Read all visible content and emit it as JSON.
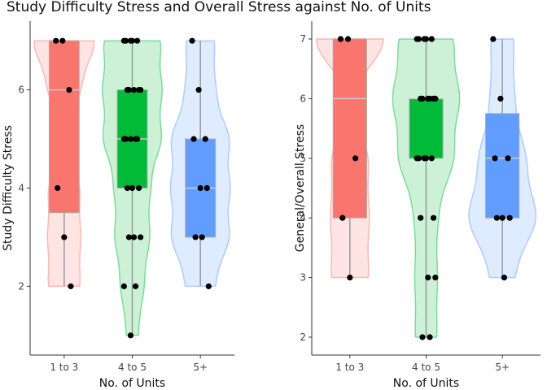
{
  "title": "Study Difficulty Stress and Overall Stress against No. of Units",
  "colors": {
    "group1": "#F8766D",
    "group2": "#00BA38",
    "group3": "#619CFF"
  },
  "chart_data": [
    {
      "type": "violin+box",
      "xlabel": "No. of Units",
      "ylabel": "Study Difficulty Stress",
      "categories": [
        "1 to 3",
        "4 to 5",
        "5+"
      ],
      "ylim": [
        0.6,
        7.4
      ],
      "yticks": [
        2,
        4,
        6
      ],
      "grid": false,
      "box": [
        {
          "category": "1 to 3",
          "q1": 3.5,
          "median": 6,
          "q3": 7
        },
        {
          "category": "4 to 5",
          "q1": 4,
          "median": 5,
          "q3": 6
        },
        {
          "category": "5+",
          "q1": 3,
          "median": 4,
          "q3": 5
        }
      ],
      "whiskers": [
        {
          "category": "1 to 3",
          "low": 2,
          "high": 7
        },
        {
          "category": "4 to 5",
          "low": 1,
          "high": 7
        },
        {
          "category": "5+",
          "low": 2,
          "high": 7
        }
      ],
      "points": [
        {
          "category": "1 to 3",
          "values": [
            7,
            7,
            6,
            4,
            3,
            2
          ]
        },
        {
          "category": "4 to 5",
          "values": [
            7,
            7,
            7,
            7,
            7,
            6,
            6,
            6,
            6,
            6,
            5,
            5,
            5,
            5,
            5,
            4,
            4,
            4,
            3,
            3,
            3,
            2,
            2,
            1
          ]
        },
        {
          "category": "5+",
          "values": [
            7,
            6,
            5,
            5,
            4,
            4,
            3,
            3,
            2
          ]
        }
      ]
    },
    {
      "type": "violin+box",
      "xlabel": "No. of Units",
      "ylabel": "General/Overall Stress",
      "categories": [
        "1 to 3",
        "4 to 5",
        "5+"
      ],
      "ylim": [
        1.7,
        7.3
      ],
      "yticks": [
        2,
        3,
        4,
        5,
        6,
        7
      ],
      "grid": false,
      "box": [
        {
          "category": "1 to 3",
          "q1": 4,
          "median": 6,
          "q3": 7
        },
        {
          "category": "4 to 5",
          "q1": 5,
          "median": 6,
          "q3": 6
        },
        {
          "category": "5+",
          "q1": 4,
          "median": 5,
          "q3": 5.75
        }
      ],
      "whiskers": [
        {
          "category": "1 to 3",
          "low": 3,
          "high": 7
        },
        {
          "category": "4 to 5",
          "low": 2,
          "high": 7
        },
        {
          "category": "5+",
          "low": 3,
          "high": 7
        }
      ],
      "points": [
        {
          "category": "1 to 3",
          "values": [
            7,
            7,
            5,
            4,
            3
          ]
        },
        {
          "category": "4 to 5",
          "values": [
            7,
            7,
            7,
            7,
            7,
            6,
            6,
            6,
            6,
            6,
            6,
            5,
            5,
            5,
            5,
            5,
            4,
            4,
            3,
            3,
            2,
            2
          ]
        },
        {
          "category": "5+",
          "values": [
            7,
            6,
            5,
            5,
            4,
            4,
            4,
            3
          ]
        }
      ]
    }
  ]
}
